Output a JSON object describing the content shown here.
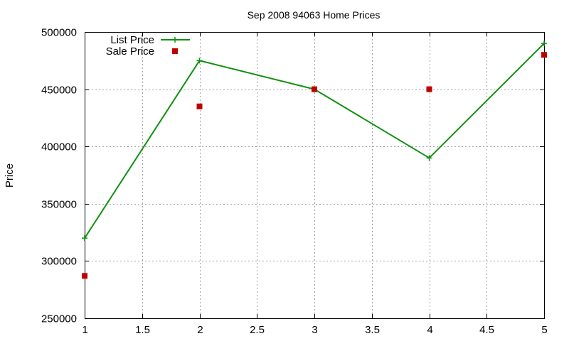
{
  "chart_data": {
    "type": "line",
    "title": "Sep 2008 94063 Home Prices",
    "xlabel": "",
    "ylabel": "Price",
    "xlim": [
      1,
      5
    ],
    "ylim": [
      250000,
      500000
    ],
    "xticks": [
      "1",
      "1.5",
      "2",
      "2.5",
      "3",
      "3.5",
      "4",
      "4.5",
      "5"
    ],
    "yticks": [
      "250000",
      "300000",
      "350000",
      "400000",
      "450000",
      "500000"
    ],
    "grid": true,
    "legend_position": "top-left",
    "series": [
      {
        "name": "List Price",
        "style": "linespoints",
        "marker": "plus",
        "color": "#109010",
        "x": [
          1,
          2,
          3,
          4,
          5
        ],
        "y": [
          320000,
          475000,
          450000,
          390000,
          490000
        ]
      },
      {
        "name": "Sale Price",
        "style": "points",
        "marker": "square",
        "color": "#c00000",
        "x": [
          1,
          2,
          3,
          4,
          5
        ],
        "y": [
          287000,
          435000,
          450000,
          450000,
          480000
        ]
      }
    ]
  }
}
